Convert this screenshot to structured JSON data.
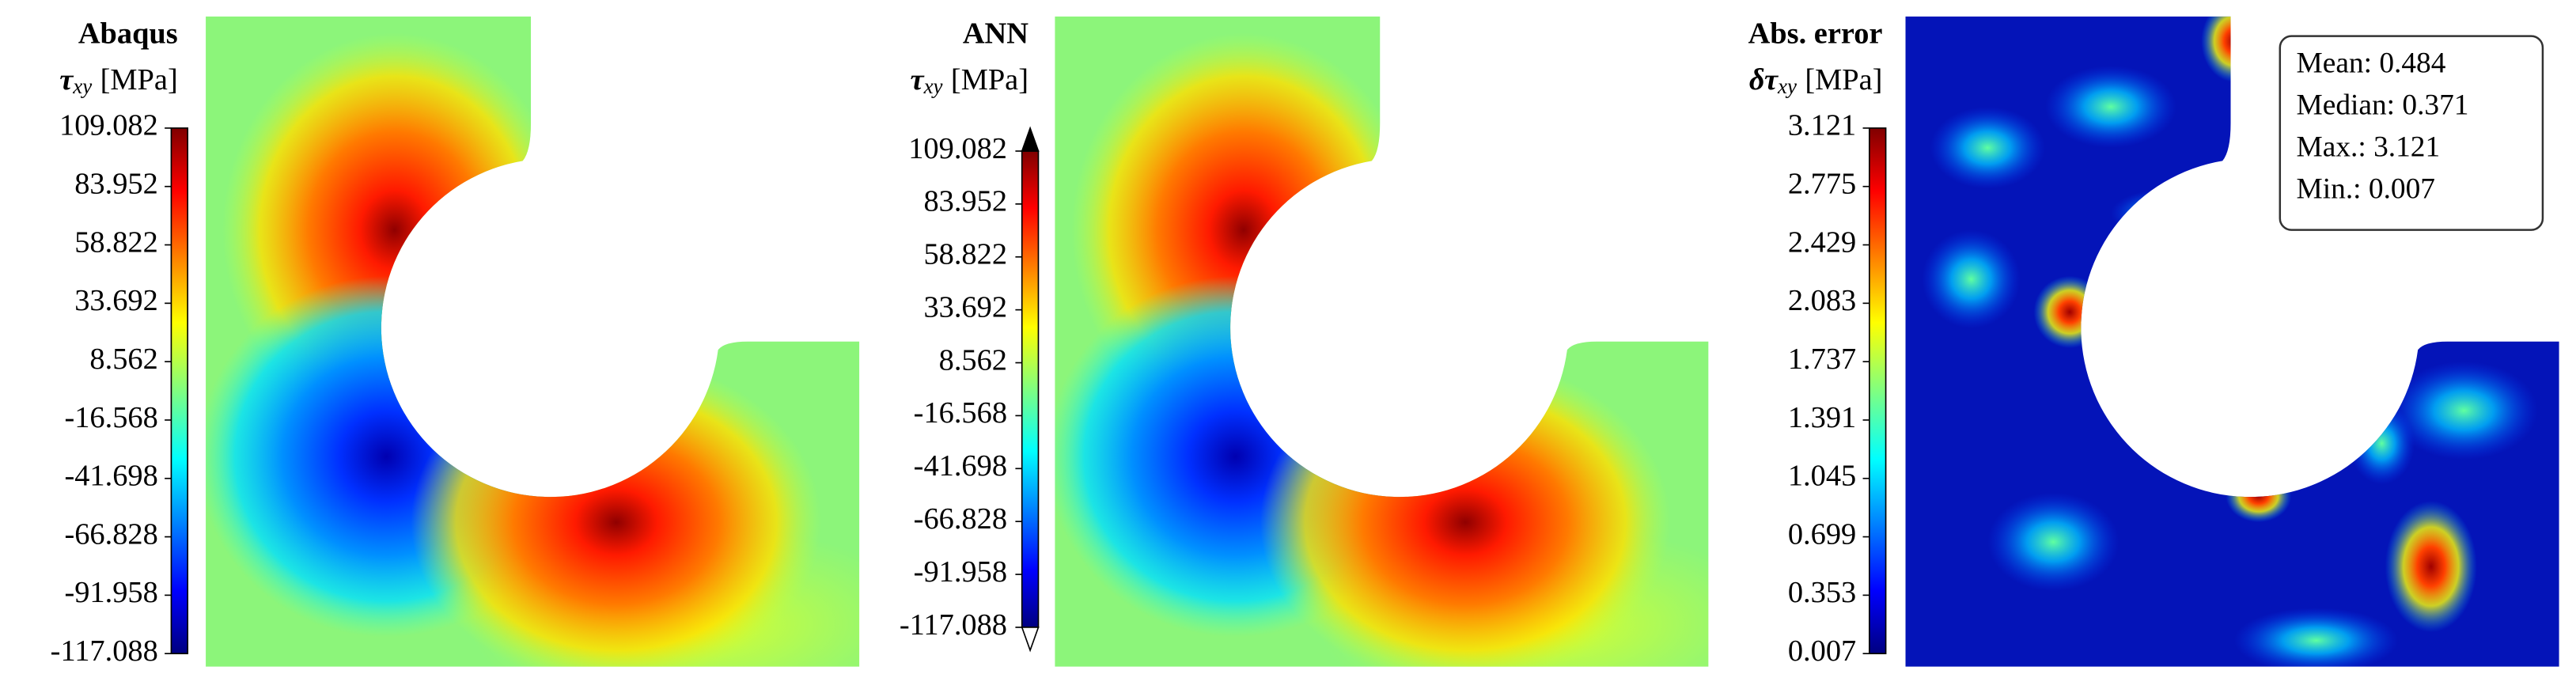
{
  "chart_data": [
    {
      "type": "contour",
      "title": "Abaqus",
      "colorbar_label": {
        "symbol": "τ",
        "subscript": "xy",
        "unit": "[MPa]"
      },
      "clim": [
        -117.088,
        109.082
      ],
      "extend": "neither",
      "cticks": [
        -117.088,
        -91.958,
        -66.828,
        -41.698,
        -16.568,
        8.562,
        33.692,
        58.822,
        83.952,
        109.082
      ]
    },
    {
      "type": "contour",
      "title": "ANN",
      "colorbar_label": {
        "symbol": "τ",
        "subscript": "xy",
        "unit": "[MPa]"
      },
      "clim": [
        -117.088,
        109.082
      ],
      "extend": "both",
      "cticks": [
        -117.088,
        -91.958,
        -66.828,
        -41.698,
        -16.568,
        8.562,
        33.692,
        58.822,
        83.952,
        109.082
      ]
    },
    {
      "type": "contour",
      "title": "Abs. error",
      "colorbar_label": {
        "symbol": "δτ",
        "subscript": "xy",
        "unit": "[MPa]"
      },
      "clim": [
        0.007,
        3.121
      ],
      "extend": "neither",
      "cticks": [
        0.007,
        0.353,
        0.699,
        1.045,
        1.391,
        1.737,
        2.083,
        2.429,
        2.775,
        3.121
      ],
      "annotations": [
        "Mean: 0.484",
        "Median: 0.371",
        "Max.: 3.121",
        "Min.: 0.007"
      ]
    }
  ]
}
